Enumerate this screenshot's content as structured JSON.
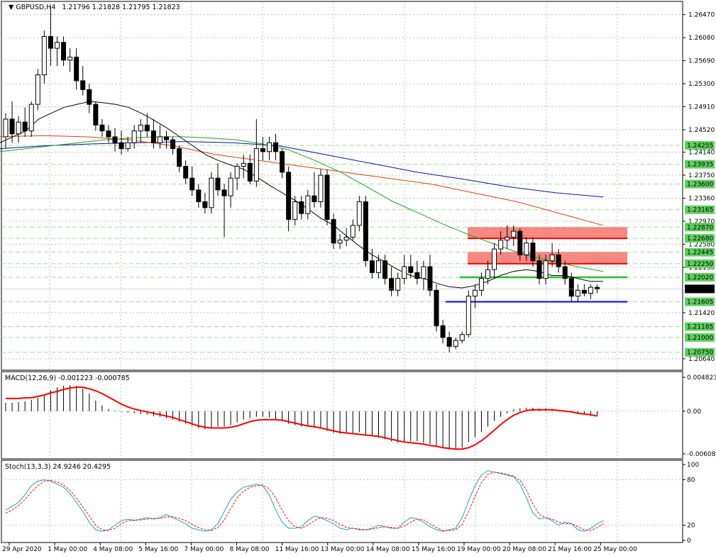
{
  "header": {
    "symbol_tf": "GBPUSD,H4",
    "ohlc": "1.21796 1.21828 1.21795 1.21823"
  },
  "price_panel": {
    "ylim": [
      1.2047,
      1.2667
    ],
    "ticks": [
      "1.26470",
      "1.26080",
      "1.25690",
      "1.25300",
      "1.24910",
      "1.24520",
      "1.24140",
      "1.23750",
      "1.23360",
      "1.22970",
      "1.22580",
      "1.22190",
      "1.21420",
      "1.20640"
    ],
    "level_labels": [
      "1.24255",
      "1.23935",
      "1.23600",
      "1.23165",
      "1.22870",
      "1.22680",
      "1.22445",
      "1.22250",
      "1.22020",
      "1.21605",
      "1.21185",
      "1.21000",
      "1.20750"
    ],
    "current_price": "1.21823"
  },
  "macd_panel": {
    "header": "MACD(12,26,9) -0.001223 -0.000785",
    "ticks": [
      "0.004823",
      "0.00",
      "-0.006082"
    ]
  },
  "stoch_panel": {
    "header": "Stoch(13,3,3) 24.9246 20.4295",
    "ticks": [
      "100",
      "80",
      "20",
      "0"
    ]
  },
  "time_axis": {
    "labels": [
      "29 Apr 2020",
      "1 May 00:00",
      "4 May 08:00",
      "5 May 16:00",
      "7 May 00:00",
      "8 May 08:00",
      "11 May 16:00",
      "13 May 00:00",
      "14 May 08:00",
      "15 May 16:00",
      "19 May 00:00",
      "20 May 08:00",
      "21 May 16:00",
      "25 May 00:00"
    ]
  },
  "colors": {
    "bull": "#ffffff",
    "bear": "#000000",
    "grid": "#c0c0c0",
    "level_green": "#21c121",
    "level_blue": "#0000ff",
    "resistance": "#f47b72",
    "ma_fast": "#000000",
    "ma_mid": "#21a121",
    "ma_slow": "#e04010",
    "ma_long": "#1010a0",
    "macd_signal": "#ff0000",
    "stoch_main": "#20a0c0",
    "stoch_signal": "#ff0000"
  },
  "chart_data": {
    "type": "candlestick",
    "series_ohlc": [
      [
        1.244,
        1.248,
        1.242,
        1.247
      ],
      [
        1.247,
        1.25,
        1.243,
        1.2445
      ],
      [
        1.2445,
        1.2475,
        1.243,
        1.2465
      ],
      [
        1.2465,
        1.249,
        1.244,
        1.245
      ],
      [
        1.245,
        1.25,
        1.244,
        1.2495
      ],
      [
        1.2495,
        1.2555,
        1.2485,
        1.2545
      ],
      [
        1.2545,
        1.262,
        1.253,
        1.261
      ],
      [
        1.261,
        1.266,
        1.256,
        1.259
      ],
      [
        1.259,
        1.261,
        1.256,
        1.26
      ],
      [
        1.26,
        1.261,
        1.256,
        1.257
      ],
      [
        1.257,
        1.259,
        1.255,
        1.2575
      ],
      [
        1.2575,
        1.259,
        1.252,
        1.2535
      ],
      [
        1.2535,
        1.256,
        1.251,
        1.252
      ],
      [
        1.252,
        1.253,
        1.248,
        1.2495
      ],
      [
        1.2495,
        1.25,
        1.245,
        1.246
      ],
      [
        1.246,
        1.247,
        1.244,
        1.245
      ],
      [
        1.245,
        1.246,
        1.243,
        1.244
      ],
      [
        1.244,
        1.2455,
        1.2415,
        1.243
      ],
      [
        1.243,
        1.245,
        1.241,
        1.242
      ],
      [
        1.242,
        1.244,
        1.2415,
        1.243
      ],
      [
        1.243,
        1.246,
        1.242,
        1.245
      ],
      [
        1.245,
        1.247,
        1.243,
        1.246
      ],
      [
        1.246,
        1.248,
        1.244,
        1.245
      ],
      [
        1.245,
        1.247,
        1.242,
        1.243
      ],
      [
        1.243,
        1.246,
        1.242,
        1.244
      ],
      [
        1.244,
        1.245,
        1.242,
        1.2435
      ],
      [
        1.2435,
        1.244,
        1.241,
        1.242
      ],
      [
        1.242,
        1.2425,
        1.238,
        1.239
      ],
      [
        1.239,
        1.24,
        1.236,
        1.237
      ],
      [
        1.237,
        1.239,
        1.234,
        1.235
      ],
      [
        1.235,
        1.236,
        1.232,
        1.233
      ],
      [
        1.233,
        1.2345,
        1.231,
        1.232
      ],
      [
        1.232,
        1.238,
        1.231,
        1.237
      ],
      [
        1.237,
        1.2395,
        1.234,
        1.235
      ],
      [
        1.235,
        1.236,
        1.227,
        1.234
      ],
      [
        1.234,
        1.238,
        1.232,
        1.237
      ],
      [
        1.237,
        1.2395,
        1.235,
        1.239
      ],
      [
        1.239,
        1.241,
        1.237,
        1.2395
      ],
      [
        1.2395,
        1.241,
        1.236,
        1.2365
      ],
      [
        1.2365,
        1.247,
        1.2355,
        1.242
      ],
      [
        1.242,
        1.244,
        1.24,
        1.2415
      ],
      [
        1.2415,
        1.244,
        1.24,
        1.243
      ],
      [
        1.243,
        1.2445,
        1.24,
        1.2415
      ],
      [
        1.2415,
        1.242,
        1.237,
        1.238
      ],
      [
        1.238,
        1.239,
        1.228,
        1.23
      ],
      [
        1.23,
        1.234,
        1.229,
        1.233
      ],
      [
        1.233,
        1.234,
        1.23,
        1.231
      ],
      [
        1.231,
        1.235,
        1.23,
        1.234
      ],
      [
        1.234,
        1.238,
        1.232,
        1.233
      ],
      [
        1.233,
        1.2385,
        1.232,
        1.2375
      ],
      [
        1.2375,
        1.2385,
        1.229,
        1.23
      ],
      [
        1.23,
        1.231,
        1.225,
        1.226
      ],
      [
        1.226,
        1.2275,
        1.225,
        1.2265
      ],
      [
        1.2265,
        1.2285,
        1.2255,
        1.227
      ],
      [
        1.227,
        1.23,
        1.2265,
        1.229
      ],
      [
        1.229,
        1.234,
        1.228,
        1.233
      ],
      [
        1.233,
        1.234,
        1.222,
        1.223
      ],
      [
        1.223,
        1.225,
        1.22,
        1.221
      ],
      [
        1.221,
        1.224,
        1.22,
        1.223
      ],
      [
        1.223,
        1.224,
        1.219,
        1.22
      ],
      [
        1.22,
        1.222,
        1.217,
        1.218
      ],
      [
        1.218,
        1.221,
        1.217,
        1.22
      ],
      [
        1.22,
        1.224,
        1.219,
        1.222
      ],
      [
        1.222,
        1.224,
        1.22,
        1.221
      ],
      [
        1.221,
        1.223,
        1.219,
        1.22
      ],
      [
        1.22,
        1.223,
        1.218,
        1.222
      ],
      [
        1.222,
        1.224,
        1.217,
        1.218
      ],
      [
        1.218,
        1.219,
        1.211,
        1.212
      ],
      [
        1.212,
        1.213,
        1.209,
        1.21
      ],
      [
        1.21,
        1.211,
        1.2075,
        1.2085
      ],
      [
        1.2085,
        1.21,
        1.208,
        1.2095
      ],
      [
        1.2095,
        1.211,
        1.209,
        1.2105
      ],
      [
        1.2105,
        1.218,
        1.21,
        1.217
      ],
      [
        1.217,
        1.219,
        1.215,
        1.218
      ],
      [
        1.218,
        1.221,
        1.217,
        1.22
      ],
      [
        1.22,
        1.223,
        1.219,
        1.2215
      ],
      [
        1.2215,
        1.226,
        1.22,
        1.225
      ],
      [
        1.225,
        1.228,
        1.224,
        1.2265
      ],
      [
        1.2265,
        1.229,
        1.225,
        1.227
      ],
      [
        1.227,
        1.229,
        1.2255,
        1.228
      ],
      [
        1.228,
        1.2285,
        1.223,
        1.224
      ],
      [
        1.224,
        1.227,
        1.223,
        1.226
      ],
      [
        1.226,
        1.227,
        1.222,
        1.223
      ],
      [
        1.223,
        1.224,
        1.219,
        1.22
      ],
      [
        1.22,
        1.224,
        1.219,
        1.223
      ],
      [
        1.223,
        1.226,
        1.222,
        1.224
      ],
      [
        1.224,
        1.225,
        1.221,
        1.222
      ],
      [
        1.222,
        1.223,
        1.219,
        1.22
      ],
      [
        1.22,
        1.221,
        1.216,
        1.217
      ],
      [
        1.217,
        1.219,
        1.216,
        1.218
      ],
      [
        1.218,
        1.219,
        1.217,
        1.2175
      ],
      [
        1.2175,
        1.219,
        1.2165,
        1.2185
      ],
      [
        1.2185,
        1.219,
        1.2175,
        1.2182
      ]
    ],
    "levels": [
      {
        "price": 1.2202,
        "color": "level_green"
      },
      {
        "price": 1.21605,
        "color": "level_blue"
      }
    ],
    "zones": [
      {
        "from": 1.2268,
        "to": 1.2287,
        "color": "resistance"
      },
      {
        "from": 1.2225,
        "to": 1.2245,
        "color": "resistance"
      }
    ],
    "macd": {
      "ylim": [
        -0.006082,
        0.004823
      ],
      "hist": [
        0.0012,
        0.0012,
        0.0013,
        0.0014,
        0.0016,
        0.0019,
        0.0024,
        0.003,
        0.0034,
        0.0036,
        0.0037,
        0.0036,
        0.0032,
        0.0025,
        0.0015,
        0.0008,
        0.0003,
        0.0001,
        -0.0001,
        -0.0002,
        -0.0003,
        -0.0004,
        -0.0005,
        -0.0007,
        -0.0008,
        -0.001,
        -0.0012,
        -0.0015,
        -0.0018,
        -0.0021,
        -0.0024,
        -0.0026,
        -0.0024,
        -0.0022,
        -0.0022,
        -0.002,
        -0.0016,
        -0.0012,
        -0.001,
        -0.0008,
        -0.0008,
        -0.0009,
        -0.0012,
        -0.0014,
        -0.0018,
        -0.002,
        -0.0022,
        -0.0022,
        -0.0024,
        -0.0025,
        -0.0028,
        -0.0031,
        -0.0032,
        -0.0032,
        -0.0032,
        -0.003,
        -0.0034,
        -0.0036,
        -0.0038,
        -0.004,
        -0.0043,
        -0.0045,
        -0.0044,
        -0.0043,
        -0.0043,
        -0.0045,
        -0.0047,
        -0.005,
        -0.0052,
        -0.0055,
        -0.0054,
        -0.0052,
        -0.0044,
        -0.0037,
        -0.003,
        -0.0022,
        -0.0014,
        -0.0008,
        -0.0003,
        0.0003,
        0.0004,
        0.0005,
        0.0005,
        0.0004,
        0.0004,
        0.0003,
        0.0001,
        0.0,
        -0.0002,
        -0.0004,
        -0.0005,
        -0.0007,
        -0.0007
      ],
      "signal": [
        0.0018,
        0.0018,
        0.0018,
        0.0019,
        0.0019,
        0.0021,
        0.0023,
        0.0026,
        0.0028,
        0.0031,
        0.0033,
        0.0034,
        0.0034,
        0.0032,
        0.0029,
        0.0025,
        0.002,
        0.0015,
        0.001,
        0.0006,
        0.0003,
        0.0001,
        -0.0001,
        -0.0003,
        -0.0005,
        -0.0007,
        -0.0009,
        -0.0012,
        -0.0015,
        -0.0018,
        -0.0021,
        -0.0023,
        -0.0024,
        -0.0024,
        -0.0024,
        -0.0023,
        -0.0021,
        -0.0018,
        -0.0015,
        -0.0013,
        -0.0012,
        -0.0012,
        -0.0012,
        -0.0013,
        -0.0015,
        -0.0017,
        -0.0019,
        -0.0021,
        -0.0022,
        -0.0024,
        -0.0026,
        -0.0028,
        -0.003,
        -0.0031,
        -0.0032,
        -0.0033,
        -0.0034,
        -0.0035,
        -0.0036,
        -0.0038,
        -0.004,
        -0.0042,
        -0.0044,
        -0.0045,
        -0.0046,
        -0.0047,
        -0.0049,
        -0.005,
        -0.0052,
        -0.0053,
        -0.0054,
        -0.0054,
        -0.0052,
        -0.0048,
        -0.0042,
        -0.0035,
        -0.0027,
        -0.0019,
        -0.0012,
        -0.0006,
        -0.0002,
        0.0001,
        0.0002,
        0.0002,
        0.0002,
        0.0002,
        0.0001,
        0.0,
        -0.0001,
        -0.0003,
        -0.0004,
        -0.0005,
        -0.0007
      ]
    },
    "stoch": {
      "ylim": [
        0,
        100
      ],
      "main": [
        40,
        45,
        50,
        60,
        72,
        78,
        80,
        78,
        74,
        70,
        62,
        50,
        38,
        24,
        14,
        12,
        14,
        20,
        26,
        28,
        26,
        28,
        30,
        28,
        30,
        34,
        30,
        26,
        22,
        16,
        14,
        12,
        14,
        22,
        38,
        54,
        64,
        70,
        72,
        74,
        72,
        60,
        40,
        24,
        16,
        16,
        18,
        26,
        32,
        30,
        26,
        22,
        16,
        14,
        16,
        14,
        14,
        16,
        20,
        18,
        16,
        16,
        24,
        30,
        28,
        24,
        18,
        14,
        12,
        14,
        16,
        30,
        52,
        72,
        86,
        92,
        90,
        88,
        86,
        84,
        74,
        56,
        36,
        28,
        30,
        26,
        20,
        24,
        22,
        14,
        12,
        16,
        22,
        26
      ],
      "signal": [
        36,
        40,
        46,
        54,
        64,
        72,
        78,
        79,
        77,
        73,
        66,
        56,
        44,
        32,
        20,
        14,
        13,
        16,
        22,
        26,
        27,
        27,
        28,
        29,
        29,
        31,
        31,
        29,
        26,
        21,
        17,
        14,
        13,
        17,
        27,
        42,
        56,
        65,
        70,
        72,
        73,
        68,
        56,
        40,
        26,
        18,
        16,
        20,
        26,
        30,
        29,
        26,
        21,
        17,
        16,
        15,
        14,
        15,
        17,
        18,
        17,
        16,
        19,
        24,
        28,
        27,
        22,
        17,
        13,
        13,
        14,
        21,
        38,
        58,
        76,
        87,
        90,
        89,
        87,
        85,
        79,
        66,
        48,
        34,
        30,
        28,
        24,
        22,
        22,
        18,
        14,
        13,
        17,
        22
      ]
    },
    "moving_averages": {
      "ma_fast": [
        1.243,
        1.244,
        1.245,
        1.247,
        1.248,
        1.249,
        1.2495,
        1.25,
        1.2498,
        1.2495,
        1.249,
        1.248,
        1.2468,
        1.2455,
        1.244,
        1.2425,
        1.241,
        1.24,
        1.2392,
        1.2385,
        1.2372,
        1.2358,
        1.2345,
        1.2332,
        1.2318,
        1.2302,
        1.229,
        1.2272,
        1.2255,
        1.224,
        1.2228,
        1.2215,
        1.2205,
        1.22,
        1.2192,
        1.2186,
        1.2184,
        1.2188,
        1.2195,
        1.2205,
        1.2212,
        1.2215,
        1.2212,
        1.2205,
        1.2205,
        1.22,
        1.2195,
        1.2195
      ],
      "ma_mid": [
        1.2415,
        1.242,
        1.2425,
        1.243,
        1.2435,
        1.2438,
        1.244,
        1.244,
        1.2438,
        1.2435,
        1.2428,
        1.2418,
        1.24,
        1.238,
        1.2355,
        1.233,
        1.231,
        1.229,
        1.2272,
        1.2256,
        1.224,
        1.223,
        1.222,
        1.2212
      ],
      "ma_slow": [
        1.244,
        1.2442,
        1.244,
        1.2435,
        1.2425,
        1.241,
        1.24,
        1.239,
        1.238,
        1.237,
        1.236,
        1.2345,
        1.233,
        1.231,
        1.229
      ],
      "ma_long": [
        1.242,
        1.2425,
        1.2428,
        1.243,
        1.2432,
        1.243,
        1.2425,
        1.241,
        1.2395,
        1.238,
        1.2368,
        1.2355,
        1.2345,
        1.2338
      ]
    }
  }
}
